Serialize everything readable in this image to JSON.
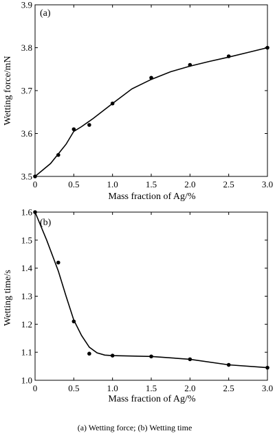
{
  "caption": "(a) Wetting force;    (b) Wetting time",
  "chart_data": [
    {
      "type": "line",
      "panel_label": "(a)",
      "xlabel": "Mass fraction of Ag/%",
      "ylabel": "Wetting force/mN",
      "xlim": [
        0,
        3.0
      ],
      "ylim": [
        3.5,
        3.9
      ],
      "xticks": [
        "0",
        "0.5",
        "1.0",
        "1.5",
        "2.0",
        "2.5",
        "3.0"
      ],
      "yticks": [
        "3.5",
        "3.6",
        "3.7",
        "3.8",
        "3.9"
      ],
      "points": {
        "x": [
          0,
          0.3,
          0.5,
          0.7,
          1.0,
          1.5,
          2.0,
          2.5,
          3.0
        ],
        "y": [
          3.5,
          3.55,
          3.61,
          3.62,
          3.67,
          3.73,
          3.76,
          3.78,
          3.8
        ]
      },
      "curve": {
        "x": [
          0,
          0.2,
          0.4,
          0.5,
          0.6,
          0.75,
          1.0,
          1.25,
          1.5,
          1.75,
          2.0,
          2.25,
          2.5,
          2.75,
          3.0
        ],
        "y": [
          3.5,
          3.53,
          3.575,
          3.605,
          3.616,
          3.635,
          3.67,
          3.704,
          3.726,
          3.744,
          3.757,
          3.768,
          3.778,
          3.789,
          3.8
        ]
      },
      "grid": false
    },
    {
      "type": "line",
      "panel_label": "(b)",
      "xlabel": "Mass fraction of Ag/%",
      "ylabel": "Wetting time/s",
      "xlim": [
        0,
        3.0
      ],
      "ylim": [
        1.0,
        1.6
      ],
      "xticks": [
        "0",
        "0.5",
        "1.0",
        "1.5",
        "2.0",
        "2.5",
        "3.0"
      ],
      "yticks": [
        "1.0",
        "1.1",
        "1.2",
        "1.3",
        "1.4",
        "1.5",
        "1.6"
      ],
      "points": {
        "x": [
          0,
          0.3,
          0.5,
          0.7,
          1.0,
          1.5,
          2.0,
          2.5,
          3.0
        ],
        "y": [
          1.6,
          1.42,
          1.21,
          1.095,
          1.088,
          1.085,
          1.075,
          1.055,
          1.045
        ]
      },
      "curve": {
        "x": [
          0,
          0.15,
          0.3,
          0.4,
          0.5,
          0.6,
          0.7,
          0.8,
          0.9,
          1.0,
          1.5,
          2.0,
          2.5,
          3.0
        ],
        "y": [
          1.6,
          1.5,
          1.39,
          1.3,
          1.215,
          1.16,
          1.118,
          1.098,
          1.09,
          1.088,
          1.085,
          1.075,
          1.055,
          1.045
        ]
      },
      "grid": false
    }
  ]
}
